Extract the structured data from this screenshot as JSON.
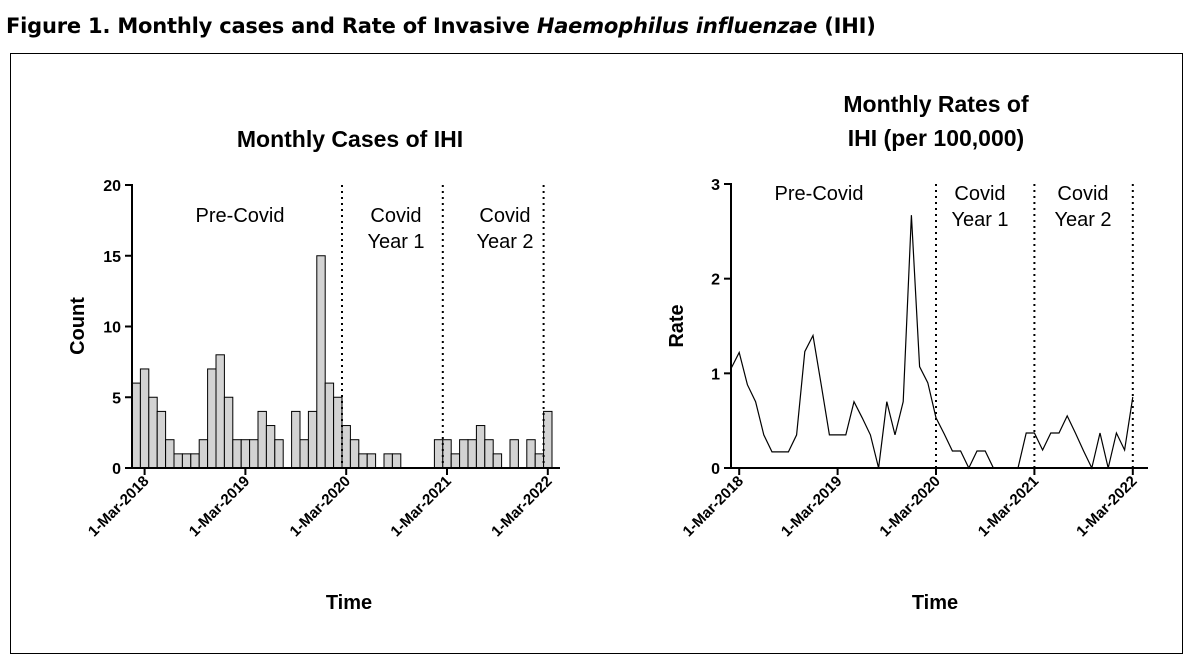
{
  "figure": {
    "label": "Figure 1.  Monthly cases and Rate of Invasive ",
    "italic": "Haemophilus influenzae",
    "suffix": " (IHI)"
  },
  "chart_data": [
    {
      "type": "bar",
      "title": "Monthly Cases of IHI",
      "xlabel": "Time",
      "ylabel": "Count",
      "ylim": [
        0,
        20
      ],
      "yticks": [
        0,
        5,
        10,
        15,
        20
      ],
      "x_tick_labels": [
        "1-Mar-2018",
        "1-Mar-2019",
        "1-Mar-2020",
        "1-Mar-2021",
        "1-Mar-2022"
      ],
      "start_month": "2018-02",
      "period_labels": [
        {
          "lines": [
            "Pre-Covid"
          ]
        },
        {
          "lines": [
            "Covid",
            "Year 1"
          ]
        },
        {
          "lines": [
            "Covid",
            "Year 2"
          ]
        }
      ],
      "dividers": [
        "1-Mar-2020",
        "1-Mar-2021",
        "1-Mar-2022"
      ],
      "bar_color": "#d3d3d3",
      "values": [
        6,
        7,
        5,
        4,
        2,
        1,
        1,
        1,
        2,
        7,
        8,
        5,
        2,
        2,
        2,
        4,
        3,
        2,
        0,
        4,
        2,
        4,
        15,
        6,
        5,
        3,
        2,
        1,
        1,
        0,
        1,
        1,
        0,
        0,
        0,
        0,
        2,
        2,
        1,
        2,
        2,
        3,
        2,
        1,
        0,
        2,
        0,
        2,
        1,
        4
      ]
    },
    {
      "type": "line",
      "title": "Monthly Rates of IHI (per 100,000)",
      "title_lines": [
        "Monthly Rates of",
        "IHI (per 100,000)"
      ],
      "xlabel": "Time",
      "ylabel": "Rate",
      "ylim": [
        0,
        3
      ],
      "yticks": [
        0,
        1,
        2,
        3
      ],
      "x_tick_labels": [
        "1-Mar-2018",
        "1-Mar-2019",
        "1-Mar-2020",
        "1-Mar-2021",
        "1-Mar-2022"
      ],
      "start_month": "2018-02",
      "period_labels": [
        {
          "lines": [
            "Pre-Covid"
          ]
        },
        {
          "lines": [
            "Covid",
            "Year 1"
          ]
        },
        {
          "lines": [
            "Covid",
            "Year 2"
          ]
        }
      ],
      "dividers": [
        "1-Mar-2020",
        "1-Mar-2021",
        "1-Mar-2022"
      ],
      "values": [
        1.05,
        1.22,
        0.88,
        0.7,
        0.35,
        0.17,
        0.17,
        0.17,
        0.35,
        1.23,
        1.4,
        0.88,
        0.35,
        0.35,
        0.35,
        0.7,
        0.53,
        0.35,
        0,
        0.7,
        0.35,
        0.7,
        2.67,
        1.07,
        0.9,
        0.53,
        0.36,
        0.18,
        0.18,
        0,
        0.18,
        0.18,
        0,
        0,
        0,
        0,
        0.37,
        0.37,
        0.19,
        0.37,
        0.37,
        0.55,
        0.37,
        0.18,
        0,
        0.37,
        0,
        0.37,
        0.19,
        0.75
      ]
    }
  ]
}
